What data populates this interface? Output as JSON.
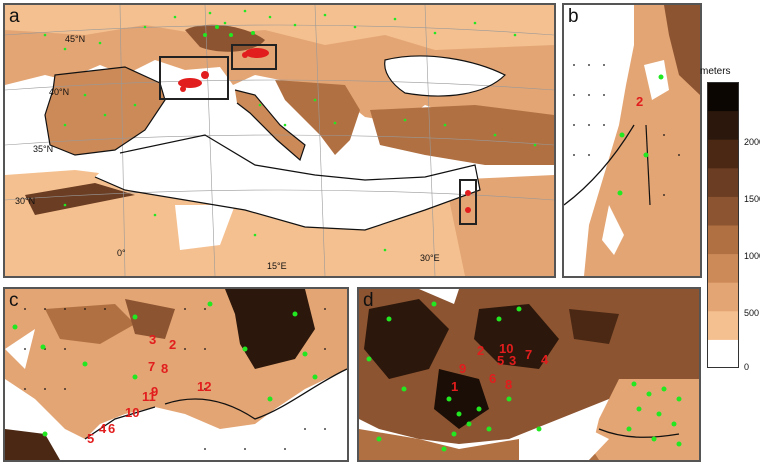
{
  "panels": {
    "a": {
      "label": "a",
      "lat_labels": [
        "45°N",
        "40°N",
        "35°N",
        "30°N"
      ],
      "lon_labels": [
        "0°",
        "15°E",
        "30°E"
      ]
    },
    "b": {
      "label": "b",
      "numbers": [
        "2"
      ]
    },
    "c": {
      "label": "c",
      "numbers": [
        "3",
        "2",
        "7",
        "8",
        "9",
        "11",
        "10",
        "12",
        "4",
        "6",
        "5"
      ]
    },
    "d": {
      "label": "d",
      "numbers": [
        "2",
        "10",
        "3",
        "5",
        "7",
        "4",
        "9",
        "6",
        "8",
        "1"
      ]
    }
  },
  "colorbar": {
    "title": "meters",
    "ticks": [
      "2000",
      "1500",
      "1000",
      "500",
      "0"
    ],
    "colors": [
      "#ffffff",
      "#f5c08f",
      "#e3a574",
      "#cc8a58",
      "#b07042",
      "#8c5431",
      "#6b3d22",
      "#4a2814",
      "#2b170b",
      "#0c0603"
    ]
  },
  "colors": {
    "station_marker": "#22e822",
    "highlight_marker": "#e21d1d",
    "frame": "#555555"
  }
}
